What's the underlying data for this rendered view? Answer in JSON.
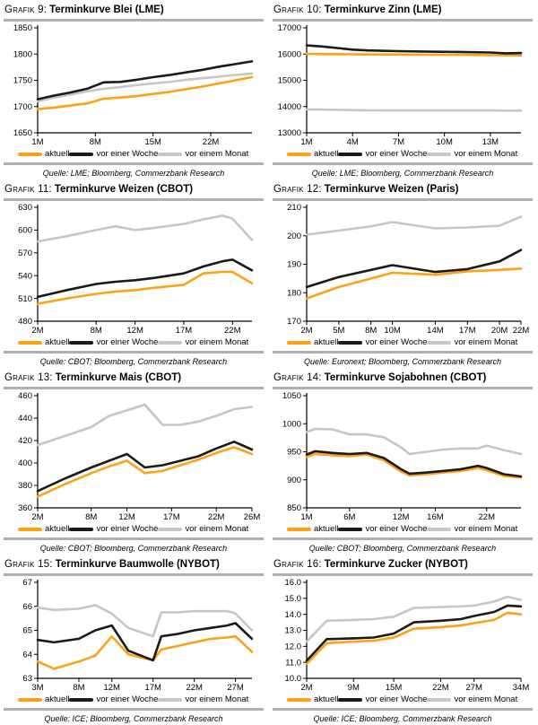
{
  "page_colors": {
    "aktuell": "#FFA115",
    "vor_einer_woche": "#1A1A1A",
    "vor_einem_monat": "#C6C6C6",
    "rule": "#B0B0B0",
    "axis": "#000000",
    "background": "#FFFFFF"
  },
  "chart_data": [
    {
      "type": "line",
      "label": "Grafik 9:",
      "title": "Terminkurve Blei (LME)",
      "source": "Quelle: LME; Bloomberg, Commerzbank Research",
      "grid": false,
      "legend_position": "bottom",
      "x": [
        1,
        3,
        5,
        7,
        9,
        11,
        13,
        15,
        17,
        19,
        21,
        23,
        25,
        27
      ],
      "xticks": [
        {
          "v": 1,
          "label": "1M"
        },
        {
          "v": 8,
          "label": "8M"
        },
        {
          "v": 15,
          "label": "15M"
        },
        {
          "v": 22,
          "label": "22M"
        }
      ],
      "ylim": [
        1650,
        1850
      ],
      "yticks": [
        "1650",
        "1700",
        "1750",
        "1800",
        "1850"
      ],
      "series": [
        {
          "name": "aktuell",
          "color": "#FFA115",
          "values": [
            1695,
            1698,
            1702,
            1706,
            1715,
            1717,
            1720,
            1724,
            1728,
            1733,
            1738,
            1744,
            1750,
            1756
          ]
        },
        {
          "name": "vor einer Woche",
          "color": "#1A1A1A",
          "values": [
            1714,
            1721,
            1727,
            1734,
            1746,
            1747,
            1751,
            1756,
            1760,
            1765,
            1770,
            1776,
            1781,
            1786
          ]
        },
        {
          "name": "vor einem Monat",
          "color": "#C6C6C6",
          "values": [
            1710,
            1717,
            1723,
            1729,
            1734,
            1737,
            1741,
            1744,
            1747,
            1751,
            1754,
            1757,
            1760,
            1763
          ]
        }
      ]
    },
    {
      "type": "line",
      "label": "Grafik 10:",
      "title": "Terminkurve Zinn (LME)",
      "source": "Quelle: LME; Bloomberg, Commerzbank Research",
      "grid": false,
      "legend_position": "bottom",
      "x": [
        1,
        2,
        3,
        4,
        5,
        7,
        9,
        11,
        13,
        14,
        15
      ],
      "xticks": [
        {
          "v": 1,
          "label": "1M"
        },
        {
          "v": 4,
          "label": "4M"
        },
        {
          "v": 7,
          "label": "7M"
        },
        {
          "v": 10,
          "label": "10M"
        },
        {
          "v": 13,
          "label": "13M"
        }
      ],
      "ylim": [
        13000,
        17000
      ],
      "yticks": [
        "13000",
        "14000",
        "15000",
        "16000",
        "17000"
      ],
      "series": [
        {
          "name": "aktuell",
          "color": "#FFA115",
          "values": [
            16010,
            16000,
            15995,
            15990,
            15985,
            15980,
            15975,
            15970,
            15960,
            15955,
            15950
          ]
        },
        {
          "name": "vor einer Woche",
          "color": "#1A1A1A",
          "values": [
            16330,
            16290,
            16230,
            16170,
            16140,
            16110,
            16090,
            16080,
            16060,
            16030,
            16040
          ]
        },
        {
          "name": "vor einem Monat",
          "color": "#C6C6C6",
          "values": [
            13890,
            13885,
            13875,
            13865,
            13855,
            13850,
            13850,
            13850,
            13850,
            13845,
            13845
          ]
        }
      ]
    },
    {
      "type": "line",
      "label": "Grafik 11:",
      "title": "Terminkurve Weizen (CBOT)",
      "source": "Quelle: CBOT; Bloomberg, Commerzbank Research",
      "grid": false,
      "legend_position": "bottom",
      "x": [
        2,
        5,
        8,
        10,
        12,
        14,
        17,
        19,
        21,
        22,
        24
      ],
      "xticks": [
        {
          "v": 2,
          "label": "2M"
        },
        {
          "v": 8,
          "label": "8M"
        },
        {
          "v": 12,
          "label": "12M"
        },
        {
          "v": 17,
          "label": "17M"
        },
        {
          "v": 22,
          "label": "22M"
        }
      ],
      "ylim": [
        480,
        630
      ],
      "yticks": [
        "480",
        "510",
        "540",
        "570",
        "600",
        "630"
      ],
      "series": [
        {
          "name": "aktuell",
          "color": "#FFA115",
          "values": [
            503,
            510,
            516,
            519,
            521,
            524,
            528,
            543,
            545,
            545,
            530
          ]
        },
        {
          "name": "vor einer Woche",
          "color": "#1A1A1A",
          "values": [
            512,
            521,
            529,
            532,
            534,
            537,
            543,
            552,
            559,
            561,
            547
          ]
        },
        {
          "name": "vor einem Monat",
          "color": "#C6C6C6",
          "values": [
            585,
            592,
            600,
            605,
            600,
            603,
            608,
            614,
            619,
            615,
            587
          ]
        }
      ]
    },
    {
      "type": "line",
      "label": "Grafik 12:",
      "title": "Terminkurve Weizen (Paris)",
      "source": "Quelle: Euronext; Bloomberg, Commerzbank Research",
      "grid": false,
      "legend_position": "bottom",
      "x": [
        2,
        5,
        8,
        10,
        14,
        17,
        20,
        22
      ],
      "xticks": [
        {
          "v": 2,
          "label": "2M"
        },
        {
          "v": 5,
          "label": "5M"
        },
        {
          "v": 8,
          "label": "8M"
        },
        {
          "v": 10,
          "label": "10M"
        },
        {
          "v": 14,
          "label": "14M"
        },
        {
          "v": 17,
          "label": "17M"
        },
        {
          "v": 20,
          "label": "20M"
        },
        {
          "v": 22,
          "label": "22M"
        }
      ],
      "ylim": [
        170,
        210
      ],
      "yticks": [
        "170",
        "180",
        "190",
        "200",
        "210"
      ],
      "series": [
        {
          "name": "aktuell",
          "color": "#FFA115",
          "values": [
            178,
            182,
            185,
            187,
            186.3,
            187.5,
            188,
            188.5
          ]
        },
        {
          "name": "vor einer Woche",
          "color": "#1A1A1A",
          "values": [
            182,
            185.5,
            188,
            189.7,
            187.3,
            188.3,
            191,
            195
          ]
        },
        {
          "name": "vor einem Monat",
          "color": "#C6C6C6",
          "values": [
            200.4,
            201.8,
            203.3,
            204.8,
            202.6,
            202.9,
            203.5,
            206.7
          ]
        }
      ]
    },
    {
      "type": "line",
      "label": "Grafik 13:",
      "title": "Terminkurve Mais (CBOT)",
      "source": "Quelle: CBOT; Bloomberg, Commerzbank Research",
      "grid": false,
      "legend_position": "bottom",
      "x": [
        2,
        5,
        8,
        10,
        12,
        14,
        16,
        18,
        20,
        22,
        24,
        26
      ],
      "xticks": [
        {
          "v": 2,
          "label": "2M"
        },
        {
          "v": 8,
          "label": "8M"
        },
        {
          "v": 12,
          "label": "12M"
        },
        {
          "v": 17,
          "label": "17M"
        },
        {
          "v": 22,
          "label": "22M"
        },
        {
          "v": 26,
          "label": "26M"
        }
      ],
      "ylim": [
        360,
        460
      ],
      "yticks": [
        "360",
        "380",
        "400",
        "420",
        "440",
        "460"
      ],
      "series": [
        {
          "name": "aktuell",
          "color": "#FFA115",
          "values": [
            370,
            381,
            391,
            397,
            402,
            391,
            393,
            398,
            403,
            409,
            414,
            408
          ]
        },
        {
          "name": "vor einer Woche",
          "color": "#1A1A1A",
          "values": [
            375,
            386,
            396,
            402,
            408,
            396,
            398,
            402,
            406,
            413,
            419,
            412
          ]
        },
        {
          "name": "vor einem Monat",
          "color": "#C6C6C6",
          "values": [
            416,
            424,
            432,
            442,
            447,
            452,
            434,
            434,
            437,
            442,
            448,
            450
          ]
        }
      ]
    },
    {
      "type": "line",
      "label": "Grafik 14:",
      "title": "Terminkurve Sojabohnen (CBOT)",
      "source": "Quelle: CBOT; Bloomberg, Commerzbank Research",
      "grid": false,
      "legend_position": "bottom",
      "x": [
        1,
        2,
        4,
        6,
        8,
        10,
        12,
        13,
        15,
        17,
        19,
        21,
        22,
        24,
        26
      ],
      "xticks": [
        {
          "v": 1,
          "label": "1M"
        },
        {
          "v": 6,
          "label": "6M"
        },
        {
          "v": 12,
          "label": "12M"
        },
        {
          "v": 16,
          "label": "16M"
        },
        {
          "v": 22,
          "label": "22M"
        }
      ],
      "ylim": [
        850,
        1050
      ],
      "yticks": [
        "850",
        "900",
        "950",
        "1000",
        "1050"
      ],
      "series": [
        {
          "name": "aktuell",
          "color": "#FFA115",
          "values": [
            941,
            946,
            944,
            942,
            945,
            935,
            915,
            908,
            910,
            913,
            916,
            921,
            917,
            907,
            904
          ]
        },
        {
          "name": "vor einer Woche",
          "color": "#1A1A1A",
          "values": [
            945,
            951,
            948,
            946,
            948,
            939,
            919,
            911,
            913,
            916,
            919,
            925,
            921,
            910,
            906
          ]
        },
        {
          "name": "vor einem Monat",
          "color": "#C6C6C6",
          "values": [
            985,
            991,
            990,
            981,
            981,
            976,
            958,
            946,
            950,
            954,
            956,
            956,
            961,
            953,
            946
          ]
        }
      ]
    },
    {
      "type": "line",
      "label": "Grafik 15:",
      "title": "Terminkurve Baumwolle (NYBOT)",
      "source": "Quelle: ICE; Bloomberg, Commerzbank Research",
      "grid": false,
      "legend_position": "bottom",
      "x": [
        3,
        5,
        8,
        10,
        12,
        14,
        17,
        18,
        20,
        22,
        24,
        26,
        27,
        29
      ],
      "xticks": [
        {
          "v": 3,
          "label": "3M"
        },
        {
          "v": 8,
          "label": "8M"
        },
        {
          "v": 12,
          "label": "12M"
        },
        {
          "v": 17,
          "label": "17M"
        },
        {
          "v": 22,
          "label": "22M"
        },
        {
          "v": 27,
          "label": "27M"
        }
      ],
      "ylim": [
        63,
        67
      ],
      "yticks": [
        "63",
        "64",
        "65",
        "66",
        "67"
      ],
      "series": [
        {
          "name": "aktuell",
          "color": "#FFA115",
          "values": [
            63.7,
            63.4,
            63.7,
            63.95,
            64.75,
            64.0,
            63.75,
            64.2,
            64.35,
            64.5,
            64.65,
            64.7,
            64.75,
            64.1
          ]
        },
        {
          "name": "vor einer Woche",
          "color": "#1A1A1A",
          "values": [
            64.6,
            64.5,
            64.65,
            65.0,
            65.2,
            64.15,
            63.75,
            64.75,
            64.85,
            65.0,
            65.1,
            65.2,
            65.3,
            64.65
          ]
        },
        {
          "name": "vor einem Monat",
          "color": "#C6C6C6",
          "values": [
            65.95,
            65.85,
            65.9,
            66.05,
            65.7,
            65.1,
            64.75,
            65.75,
            65.75,
            65.8,
            65.8,
            65.8,
            65.7,
            65.0
          ]
        }
      ]
    },
    {
      "type": "line",
      "label": "Grafik 16:",
      "title": "Terminkurve Zucker (NYBOT)",
      "source": "Quelle: ICE; Bloomberg, Commerzbank Research",
      "grid": false,
      "legend_position": "bottom",
      "x": [
        2,
        5,
        9,
        12,
        15,
        18,
        22,
        25,
        27,
        30,
        32,
        34
      ],
      "xticks": [
        {
          "v": 2,
          "label": "2M"
        },
        {
          "v": 9,
          "label": "9M"
        },
        {
          "v": 15,
          "label": "15M"
        },
        {
          "v": 22,
          "label": "22M"
        },
        {
          "v": 27,
          "label": "27M"
        },
        {
          "v": 34,
          "label": "34M"
        }
      ],
      "ylim": [
        10,
        16
      ],
      "yticks": [
        "10.0",
        "11.0",
        "12.0",
        "13.0",
        "14.0",
        "15.0",
        "16.0"
      ],
      "series": [
        {
          "name": "aktuell",
          "color": "#FFA115",
          "values": [
            10.9,
            12.2,
            12.3,
            12.35,
            12.55,
            13.1,
            13.2,
            13.3,
            13.45,
            13.65,
            14.1,
            14.0
          ]
        },
        {
          "name": "vor einer Woche",
          "color": "#1A1A1A",
          "values": [
            11.1,
            12.45,
            12.5,
            12.55,
            12.8,
            13.5,
            13.6,
            13.7,
            13.9,
            14.15,
            14.55,
            14.5
          ]
        },
        {
          "name": "vor einem Monat",
          "color": "#C6C6C6",
          "values": [
            12.3,
            13.6,
            13.65,
            13.7,
            13.85,
            14.4,
            14.45,
            14.5,
            14.55,
            14.8,
            15.1,
            14.9
          ]
        }
      ]
    }
  ]
}
